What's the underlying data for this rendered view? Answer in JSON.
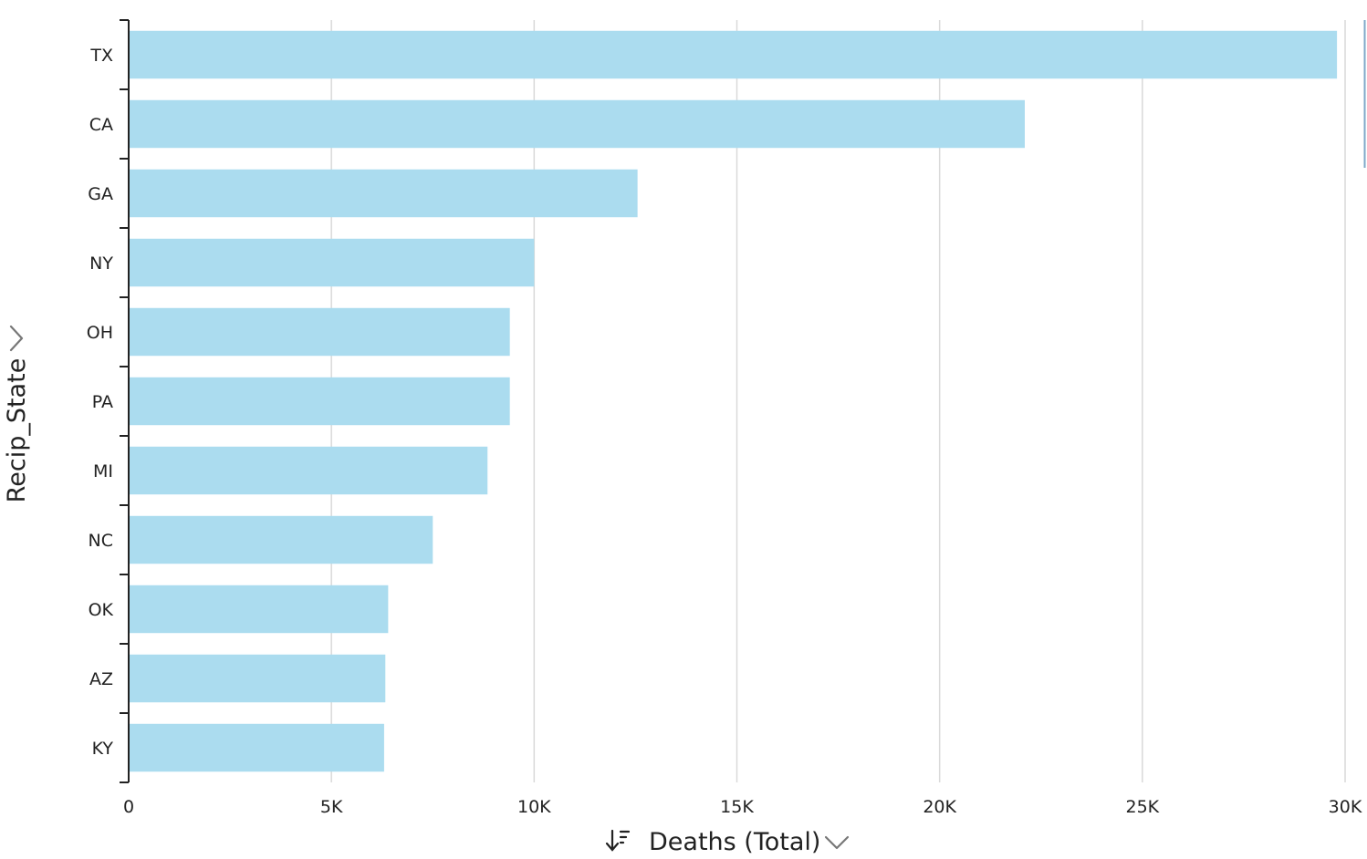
{
  "chart_data": {
    "type": "bar",
    "orientation": "horizontal",
    "categories": [
      "TX",
      "CA",
      "GA",
      "NY",
      "OH",
      "PA",
      "MI",
      "NC",
      "OK",
      "AZ",
      "KY"
    ],
    "series": [
      {
        "values": [
          29800,
          22100,
          12550,
          10000,
          9400,
          9400,
          8850,
          7500,
          6400,
          6330,
          6300
        ]
      }
    ],
    "xlabel": "Deaths (Total)",
    "ylabel": "Recip_State",
    "xlim": [
      0,
      30000
    ],
    "x_ticks": [
      "0",
      "5K",
      "10K",
      "15K",
      "20K",
      "25K",
      "30K"
    ],
    "x_tick_values": [
      0,
      5000,
      10000,
      15000,
      20000,
      25000,
      30000
    ],
    "grid": "vertical",
    "bar_color": "#abdcef",
    "sort": "descending",
    "icons": {
      "sort": "sort-descending-icon",
      "x_menu": "chevron-down-icon",
      "y_menu": "chevron-right-icon"
    }
  }
}
